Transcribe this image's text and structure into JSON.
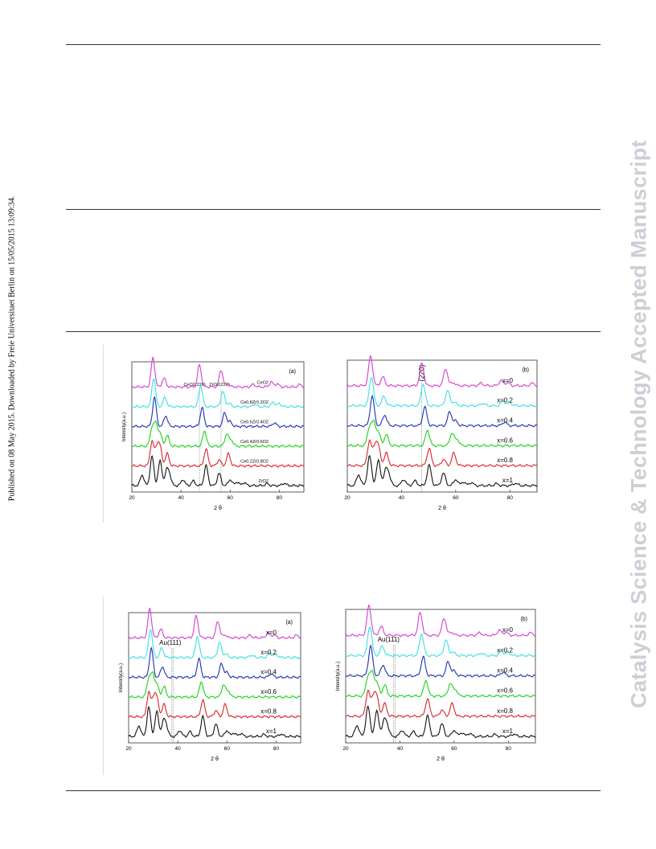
{
  "side_note": "Published on 08 May 2015. Downloaded by Freie Universitaet Berlin on 15/05/2015 13:09:34.",
  "watermark": "Catalysis Science & Technology Accepted Manuscript",
  "colors": {
    "x=0": "#d23fd0",
    "x=0.2": "#39e0e6",
    "x=0.4": "#1f2fb4",
    "x=0.6": "#18d21a",
    "x=0.8": "#d9242a",
    "x=1": "#111111"
  },
  "chart_data": [
    {
      "panel": "(a)",
      "type": "line",
      "xlabel": "2 θ",
      "ylabel": "Intensity(a.u.)",
      "xlim": [
        20,
        90
      ],
      "xticks": [
        "20",
        "40",
        "60",
        "80"
      ],
      "annotations": [
        "CeO2(220)",
        "ZrO2(220)"
      ],
      "series": [
        {
          "name": "CeO2",
          "offset": 5,
          "peaks": [
            [
              28.6,
              0.95
            ],
            [
              33.1,
              0.28
            ],
            [
              47.5,
              0.72
            ],
            [
              56.3,
              0.55
            ],
            [
              59.1,
              0.1
            ],
            [
              69.4,
              0.08
            ],
            [
              76.7,
              0.16
            ],
            [
              79.1,
              0.1
            ],
            [
              88.4,
              0.08
            ]
          ]
        },
        {
          "name": "Ce0.8Zr0.2O2",
          "offset": 4,
          "peaks": [
            [
              28.9,
              0.95
            ],
            [
              33.5,
              0.3
            ],
            [
              48.0,
              0.7
            ],
            [
              57.0,
              0.5
            ],
            [
              59.5,
              0.12
            ],
            [
              70.0,
              0.08
            ],
            [
              77.5,
              0.15
            ],
            [
              80.0,
              0.1
            ]
          ]
        },
        {
          "name": "Ce0.6Zr0.4O2",
          "offset": 3,
          "peaks": [
            [
              29.2,
              0.95
            ],
            [
              33.8,
              0.35
            ],
            [
              48.6,
              0.6
            ],
            [
              57.8,
              0.45
            ],
            [
              60.0,
              0.15
            ],
            [
              78.0,
              0.12
            ]
          ]
        },
        {
          "name": "Ce0.4Zr0.6O2",
          "offset": 2,
          "peaks": [
            [
              28.2,
              0.6
            ],
            [
              29.8,
              0.7
            ],
            [
              31.5,
              0.4
            ],
            [
              34.4,
              0.35
            ],
            [
              49.6,
              0.5
            ],
            [
              58.6,
              0.4
            ],
            [
              60.5,
              0.2
            ]
          ]
        },
        {
          "name": "Ce0.2Zr0.8O2",
          "offset": 1,
          "peaks": [
            [
              28.2,
              0.8
            ],
            [
              30.2,
              0.6
            ],
            [
              31.5,
              0.55
            ],
            [
              34.4,
              0.4
            ],
            [
              50.2,
              0.55
            ],
            [
              55.5,
              0.2
            ],
            [
              59.3,
              0.4
            ]
          ]
        },
        {
          "name": "ZrO2",
          "offset": 0,
          "peaks": [
            [
              24.2,
              0.35
            ],
            [
              28.2,
              0.95
            ],
            [
              31.5,
              0.8
            ],
            [
              34.2,
              0.45
            ],
            [
              35.3,
              0.3
            ],
            [
              40.8,
              0.2
            ],
            [
              45.0,
              0.15
            ],
            [
              50.2,
              0.65
            ],
            [
              55.5,
              0.4
            ],
            [
              60.0,
              0.2
            ],
            [
              62.8,
              0.12
            ],
            [
              65.7,
              0.1
            ],
            [
              75.0,
              0.06
            ],
            [
              82.0,
              0.08
            ]
          ]
        }
      ]
    },
    {
      "panel": "(b)",
      "type": "line",
      "xlabel": "2 θ",
      "ylabel": "",
      "xlim": [
        20,
        90
      ],
      "xticks": [
        "20",
        "40",
        "60",
        "80"
      ],
      "annotations": [
        "(220)"
      ],
      "series": [
        {
          "name": "x=0",
          "offset": 5,
          "peaks": [
            [
              28.6,
              0.95
            ],
            [
              33.1,
              0.28
            ],
            [
              47.5,
              0.72
            ],
            [
              56.3,
              0.55
            ],
            [
              59.1,
              0.1
            ],
            [
              69.4,
              0.08
            ],
            [
              76.7,
              0.16
            ],
            [
              79.1,
              0.1
            ],
            [
              88.4,
              0.08
            ]
          ]
        },
        {
          "name": "x=0.2",
          "offset": 4,
          "peaks": [
            [
              28.9,
              0.95
            ],
            [
              33.5,
              0.3
            ],
            [
              48.0,
              0.7
            ],
            [
              57.0,
              0.5
            ],
            [
              59.5,
              0.12
            ],
            [
              70.0,
              0.08
            ],
            [
              77.5,
              0.15
            ],
            [
              80.0,
              0.1
            ]
          ]
        },
        {
          "name": "x=0.4",
          "offset": 3,
          "peaks": [
            [
              29.2,
              0.95
            ],
            [
              33.8,
              0.35
            ],
            [
              48.6,
              0.6
            ],
            [
              57.8,
              0.45
            ],
            [
              60.0,
              0.15
            ],
            [
              78.0,
              0.12
            ]
          ]
        },
        {
          "name": "x=0.6",
          "offset": 2,
          "peaks": [
            [
              28.2,
              0.6
            ],
            [
              29.8,
              0.7
            ],
            [
              31.5,
              0.4
            ],
            [
              34.4,
              0.35
            ],
            [
              49.6,
              0.5
            ],
            [
              58.6,
              0.4
            ],
            [
              60.5,
              0.2
            ]
          ]
        },
        {
          "name": "x=0.8",
          "offset": 1,
          "peaks": [
            [
              28.2,
              0.8
            ],
            [
              30.2,
              0.6
            ],
            [
              31.5,
              0.55
            ],
            [
              34.4,
              0.4
            ],
            [
              50.2,
              0.55
            ],
            [
              55.5,
              0.2
            ],
            [
              59.3,
              0.4
            ]
          ]
        },
        {
          "name": "x=1",
          "offset": 0,
          "peaks": [
            [
              24.2,
              0.35
            ],
            [
              28.2,
              0.95
            ],
            [
              31.5,
              0.8
            ],
            [
              34.2,
              0.45
            ],
            [
              35.3,
              0.3
            ],
            [
              40.8,
              0.2
            ],
            [
              45.0,
              0.15
            ],
            [
              50.2,
              0.65
            ],
            [
              55.5,
              0.4
            ],
            [
              60.0,
              0.2
            ],
            [
              62.8,
              0.12
            ],
            [
              65.7,
              0.1
            ],
            [
              75.0,
              0.06
            ],
            [
              82.0,
              0.08
            ]
          ]
        }
      ]
    },
    {
      "panel": "(a)",
      "type": "line",
      "xlabel": "2 θ",
      "ylabel": "Intensity(a.u.)",
      "xlim": [
        20,
        90
      ],
      "xticks": [
        "20",
        "40",
        "60",
        "80"
      ],
      "annotations": [
        "Au(111)"
      ],
      "series": [
        {
          "name": "x=0",
          "offset": 5,
          "peaks": [
            [
              28.6,
              0.95
            ],
            [
              33.1,
              0.28
            ],
            [
              47.5,
              0.72
            ],
            [
              56.3,
              0.55
            ],
            [
              59.1,
              0.1
            ],
            [
              69.4,
              0.08
            ],
            [
              76.7,
              0.16
            ],
            [
              79.1,
              0.1
            ],
            [
              88.4,
              0.08
            ]
          ]
        },
        {
          "name": "x=0.2",
          "offset": 4,
          "peaks": [
            [
              28.9,
              0.95
            ],
            [
              33.5,
              0.3
            ],
            [
              48.0,
              0.7
            ],
            [
              57.0,
              0.5
            ],
            [
              59.5,
              0.12
            ],
            [
              70.0,
              0.08
            ],
            [
              77.5,
              0.15
            ],
            [
              80.0,
              0.1
            ]
          ]
        },
        {
          "name": "x=0.4",
          "offset": 3,
          "peaks": [
            [
              29.2,
              0.95
            ],
            [
              33.8,
              0.35
            ],
            [
              48.6,
              0.6
            ],
            [
              57.8,
              0.45
            ],
            [
              60.0,
              0.15
            ],
            [
              78.0,
              0.12
            ]
          ]
        },
        {
          "name": "x=0.6",
          "offset": 2,
          "peaks": [
            [
              28.2,
              0.6
            ],
            [
              29.8,
              0.7
            ],
            [
              31.5,
              0.4
            ],
            [
              34.4,
              0.35
            ],
            [
              49.6,
              0.5
            ],
            [
              58.6,
              0.4
            ],
            [
              60.5,
              0.2
            ]
          ]
        },
        {
          "name": "x=0.8",
          "offset": 1,
          "peaks": [
            [
              28.2,
              0.8
            ],
            [
              30.2,
              0.6
            ],
            [
              31.5,
              0.55
            ],
            [
              34.4,
              0.4
            ],
            [
              50.2,
              0.55
            ],
            [
              55.5,
              0.2
            ],
            [
              59.3,
              0.4
            ]
          ]
        },
        {
          "name": "x=1",
          "offset": 0,
          "peaks": [
            [
              24.2,
              0.35
            ],
            [
              28.2,
              0.95
            ],
            [
              31.5,
              0.8
            ],
            [
              34.2,
              0.45
            ],
            [
              35.3,
              0.3
            ],
            [
              40.8,
              0.2
            ],
            [
              45.0,
              0.15
            ],
            [
              50.2,
              0.65
            ],
            [
              55.5,
              0.4
            ],
            [
              60.0,
              0.2
            ],
            [
              62.8,
              0.12
            ],
            [
              65.7,
              0.1
            ],
            [
              75.0,
              0.06
            ],
            [
              82.0,
              0.08
            ]
          ]
        }
      ]
    },
    {
      "panel": "(b)",
      "type": "line",
      "xlabel": "2 θ",
      "ylabel": "Intensity(a.u.)",
      "xlim": [
        20,
        90
      ],
      "xticks": [
        "20",
        "40",
        "60",
        "80"
      ],
      "annotations": [
        "Au(111)"
      ],
      "series": [
        {
          "name": "x=0",
          "offset": 5,
          "peaks": [
            [
              28.6,
              0.95
            ],
            [
              33.1,
              0.28
            ],
            [
              47.5,
              0.72
            ],
            [
              56.3,
              0.55
            ],
            [
              59.1,
              0.1
            ],
            [
              69.4,
              0.08
            ],
            [
              76.7,
              0.16
            ],
            [
              79.1,
              0.1
            ],
            [
              88.4,
              0.08
            ]
          ]
        },
        {
          "name": "x=0.2",
          "offset": 4,
          "peaks": [
            [
              28.9,
              0.95
            ],
            [
              33.5,
              0.3
            ],
            [
              48.0,
              0.7
            ],
            [
              57.0,
              0.5
            ],
            [
              59.5,
              0.12
            ],
            [
              70.0,
              0.08
            ],
            [
              77.5,
              0.15
            ],
            [
              80.0,
              0.1
            ]
          ]
        },
        {
          "name": "x=0.4",
          "offset": 3,
          "peaks": [
            [
              29.2,
              0.95
            ],
            [
              33.8,
              0.35
            ],
            [
              48.6,
              0.6
            ],
            [
              57.8,
              0.45
            ],
            [
              60.0,
              0.15
            ],
            [
              78.0,
              0.12
            ]
          ]
        },
        {
          "name": "x=0.6",
          "offset": 2,
          "peaks": [
            [
              28.2,
              0.6
            ],
            [
              29.8,
              0.7
            ],
            [
              31.5,
              0.4
            ],
            [
              34.4,
              0.35
            ],
            [
              49.6,
              0.5
            ],
            [
              58.6,
              0.4
            ],
            [
              60.5,
              0.2
            ]
          ]
        },
        {
          "name": "x=0.8",
          "offset": 1,
          "peaks": [
            [
              28.2,
              0.8
            ],
            [
              30.2,
              0.6
            ],
            [
              31.5,
              0.55
            ],
            [
              34.4,
              0.4
            ],
            [
              50.2,
              0.55
            ],
            [
              55.5,
              0.2
            ],
            [
              59.3,
              0.4
            ]
          ]
        },
        {
          "name": "x=1",
          "offset": 0,
          "peaks": [
            [
              24.2,
              0.35
            ],
            [
              28.2,
              0.95
            ],
            [
              31.5,
              0.8
            ],
            [
              34.2,
              0.45
            ],
            [
              35.3,
              0.3
            ],
            [
              40.8,
              0.2
            ],
            [
              45.0,
              0.15
            ],
            [
              50.2,
              0.65
            ],
            [
              55.5,
              0.4
            ],
            [
              60.0,
              0.2
            ],
            [
              62.8,
              0.12
            ],
            [
              65.7,
              0.1
            ],
            [
              75.0,
              0.06
            ],
            [
              82.0,
              0.08
            ]
          ]
        }
      ]
    }
  ]
}
